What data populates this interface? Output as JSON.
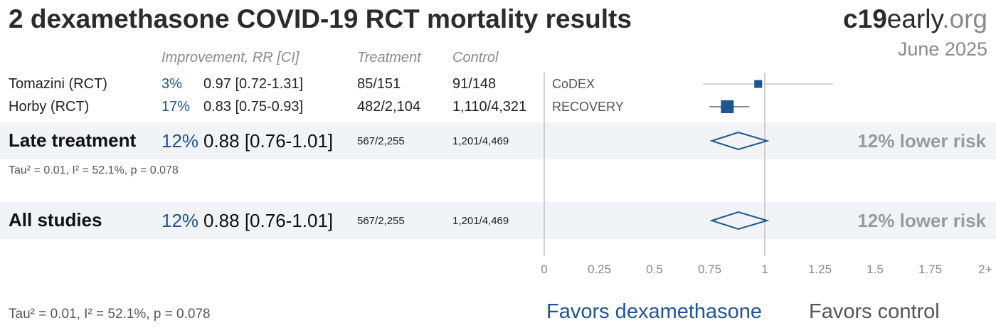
{
  "title": "2 dexamethasone COVID-19 RCT mortality results",
  "brand": {
    "bold": "c19",
    "mid": "early",
    "light": ".org"
  },
  "date": "June 2025",
  "headers": {
    "improvement": "Improvement, RR [CI]",
    "treatment": "Treatment",
    "control": "Control"
  },
  "studies": [
    {
      "name": "Tomazini (RCT)",
      "improvement": "3%",
      "rr_ci": "0.97 [0.72-1.31]",
      "treatment": "85/151",
      "control": "91/148",
      "label": "CoDEX"
    },
    {
      "name": "Horby (RCT)",
      "improvement": "17%",
      "rr_ci": "0.83 [0.75-0.93]",
      "treatment": "482/2,104",
      "control": "1,110/4,321",
      "label": "RECOVERY"
    }
  ],
  "groups": [
    {
      "name": "Late treatment",
      "improvement": "12%",
      "rr_ci": "0.88 [0.76-1.01]",
      "treatment": "567/2,255",
      "control": "1,201/4,469",
      "risk": "12% lower risk",
      "heterogeneity": "Tau² = 0.01, I² = 52.1%, p = 0.078"
    },
    {
      "name": "All studies",
      "improvement": "12%",
      "rr_ci": "0.88 [0.76-1.01]",
      "treatment": "567/2,255",
      "control": "1,201/4,469",
      "risk": "12% lower risk"
    }
  ],
  "footer_heterogeneity": "Tau² = 0.01, I² = 52.1%, p = 0.078",
  "favors_left": "Favors dexamethasone",
  "favors_right": "Favors control",
  "colors": {
    "accent": "#1f5592",
    "band": "#f1f3f6",
    "muted": "#9a9a9a"
  },
  "chart_data": {
    "type": "forest",
    "xlim": [
      0,
      2
    ],
    "xticks": [
      0,
      0.25,
      0.5,
      0.75,
      1,
      1.25,
      1.5,
      1.75,
      2
    ],
    "xtick_labels": [
      "0",
      "0.25",
      "0.5",
      "0.75",
      "1",
      "1.25",
      "1.5",
      "1.75",
      "2+"
    ],
    "studies": [
      {
        "label": "CoDEX",
        "rr": 0.97,
        "lower": 0.72,
        "upper": 1.31,
        "weight": "small"
      },
      {
        "label": "RECOVERY",
        "rr": 0.83,
        "lower": 0.75,
        "upper": 0.93,
        "weight": "large"
      }
    ],
    "pooled": [
      {
        "group": "Late treatment",
        "rr": 0.88,
        "lower": 0.76,
        "upper": 1.01
      },
      {
        "group": "All studies",
        "rr": 0.88,
        "lower": 0.76,
        "upper": 1.01
      }
    ]
  }
}
